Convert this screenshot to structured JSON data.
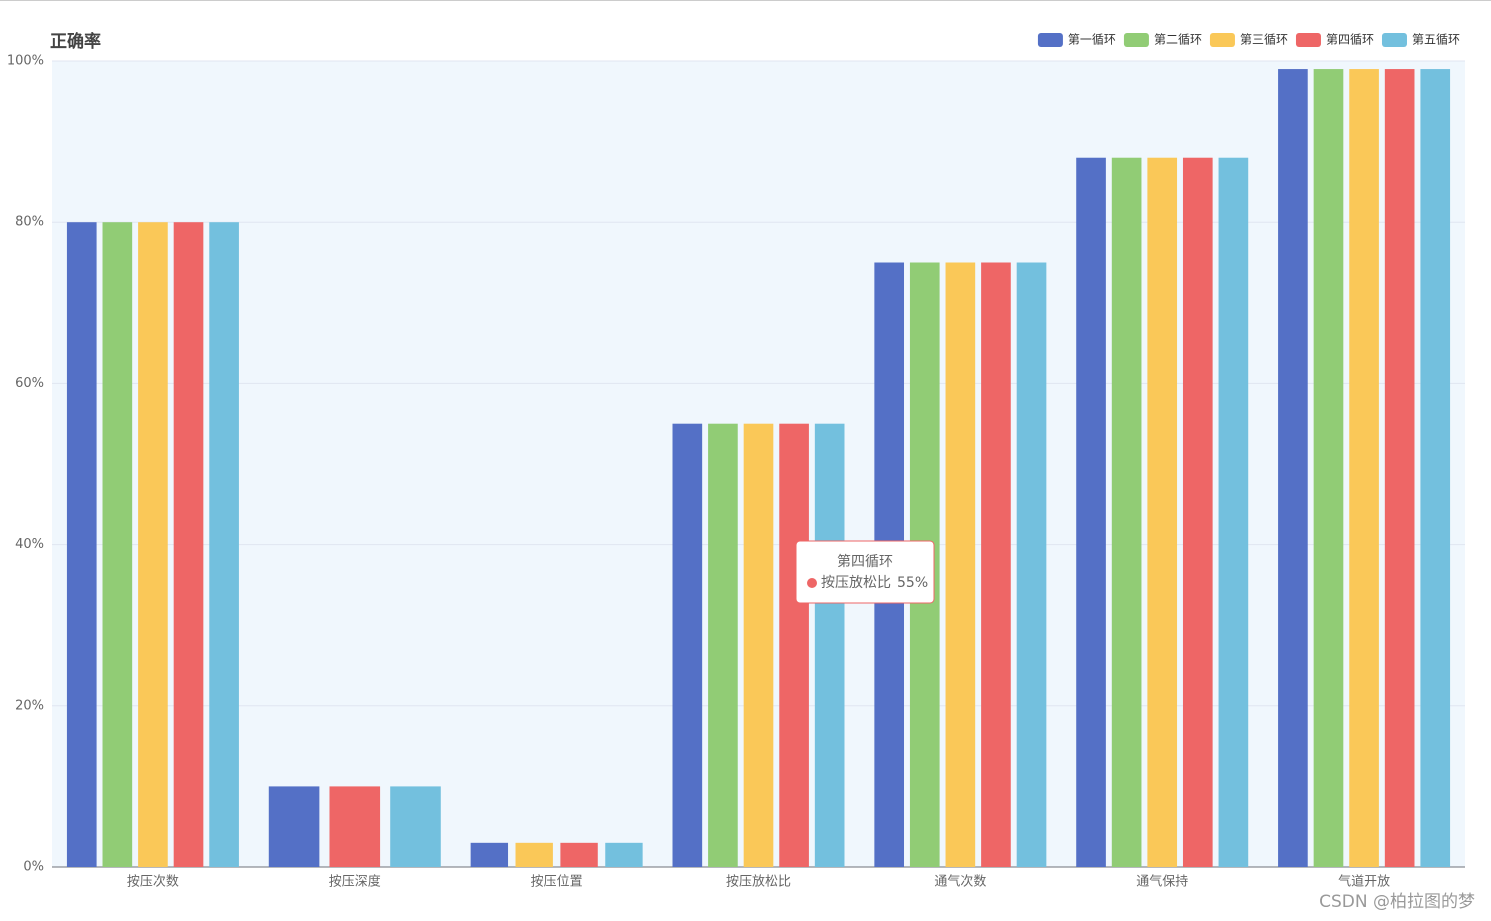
{
  "chart_data": {
    "type": "bar",
    "title": "正确率",
    "categories": [
      "按压次数",
      "按压深度",
      "按压位置",
      "按压放松比",
      "通气次数",
      "通气保持",
      "气道开放"
    ],
    "series": [
      {
        "name": "第一循环",
        "color": "#5470c6",
        "values": [
          80,
          10,
          3,
          55,
          75,
          88,
          99
        ]
      },
      {
        "name": "第二循环",
        "color": "#91cc75",
        "values": [
          80,
          null,
          null,
          55,
          75,
          88,
          99
        ]
      },
      {
        "name": "第三循环",
        "color": "#fac858",
        "values": [
          80,
          null,
          3,
          55,
          75,
          88,
          99
        ]
      },
      {
        "name": "第四循环",
        "color": "#ee6666",
        "values": [
          80,
          10,
          3,
          55,
          75,
          88,
          99
        ]
      },
      {
        "name": "第五循环",
        "color": "#73c0de",
        "values": [
          80,
          10,
          3,
          55,
          75,
          88,
          99
        ]
      }
    ],
    "ylim": [
      0,
      100
    ],
    "yticks": [
      {
        "value": 0,
        "label": "0%"
      },
      {
        "value": 20,
        "label": "20%"
      },
      {
        "value": 40,
        "label": "40%"
      },
      {
        "value": 60,
        "label": "60%"
      },
      {
        "value": 80,
        "label": "80%"
      },
      {
        "value": 100,
        "label": "100%"
      }
    ],
    "grid": true,
    "legend": "top-right",
    "tooltip": {
      "title": "第四循环",
      "label": "按压放松比",
      "value_label": "55%"
    },
    "watermark": "CSDN @柏拉图的梦"
  }
}
